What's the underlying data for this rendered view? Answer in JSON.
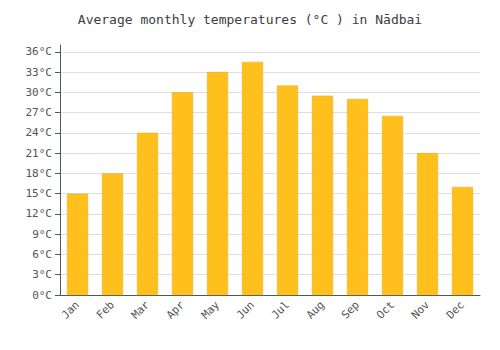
{
  "chart_data": {
    "type": "bar",
    "title": "Average monthly temperatures (°C ) in Nādbai",
    "categories": [
      "Jan",
      "Feb",
      "Mar",
      "Apr",
      "May",
      "Jun",
      "Jul",
      "Aug",
      "Sep",
      "Oct",
      "Nov",
      "Dec"
    ],
    "values": [
      15,
      18,
      24,
      30,
      33,
      34.5,
      31,
      29.5,
      29,
      26.5,
      21,
      16
    ],
    "color": "#FFC01E",
    "ylim": [
      0,
      37
    ],
    "yticks": [
      {
        "value": 0,
        "label": "0°C"
      },
      {
        "value": 3,
        "label": "3°C"
      },
      {
        "value": 6,
        "label": "6°C"
      },
      {
        "value": 9,
        "label": "9°C"
      },
      {
        "value": 12,
        "label": "12°C"
      },
      {
        "value": 15,
        "label": "15°C"
      },
      {
        "value": 18,
        "label": "18°C"
      },
      {
        "value": 21,
        "label": "21°C"
      },
      {
        "value": 24,
        "label": "24°C"
      },
      {
        "value": 27,
        "label": "27°C"
      },
      {
        "value": 30,
        "label": "30°C"
      },
      {
        "value": 33,
        "label": "33°C"
      },
      {
        "value": 36,
        "label": "36°C"
      }
    ],
    "grid": true
  }
}
